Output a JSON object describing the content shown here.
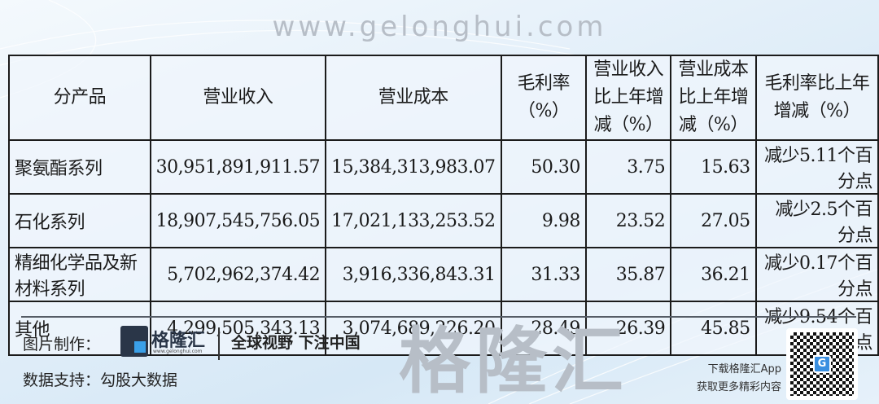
{
  "table": {
    "headers": [
      "分产品",
      "营业收入",
      "营业成本",
      "毛利率（%）",
      "营业收入比上年增减（%）",
      "营业成本比上年增减（%）",
      "毛利率比上年增减（%）"
    ],
    "rows": [
      [
        "聚氨酯系列",
        "30,951,891,911.57",
        "15,384,313,983.07",
        "50.30",
        "3.75",
        "15.63",
        "减少5.11个百分点"
      ],
      [
        "石化系列",
        "18,907,545,756.05",
        "17,021,133,253.52",
        "9.98",
        "23.52",
        "27.05",
        "减少2.5个百分点"
      ],
      [
        "精细化学品及新材料系列",
        "5,702,962,374.42",
        "3,916,336,843.31",
        "31.33",
        "35.87",
        "36.21",
        "减少0.17个百分点"
      ],
      [
        "其他",
        "4,299,505,343.13",
        "3,074,689,226.20",
        "28.49",
        "26.39",
        "45.85",
        "减少9.54个百分点"
      ]
    ]
  },
  "watermark": {
    "text": "格隆汇",
    "url": "www.gelonghui.com"
  },
  "footer": {
    "made_by_label": "图片制作：",
    "brand": "格隆汇",
    "brand_url": "www.gelonghui.com",
    "slogan": "全球视野 下注中国",
    "data_support": "数据支持：勾股大数据",
    "app_line1": "下载格隆汇App",
    "app_line2": "获取更多精彩内容",
    "qr_badge": "G"
  },
  "colors": {
    "brand_dark": "#2a3648",
    "brand_blue": "#3aa0e8"
  }
}
